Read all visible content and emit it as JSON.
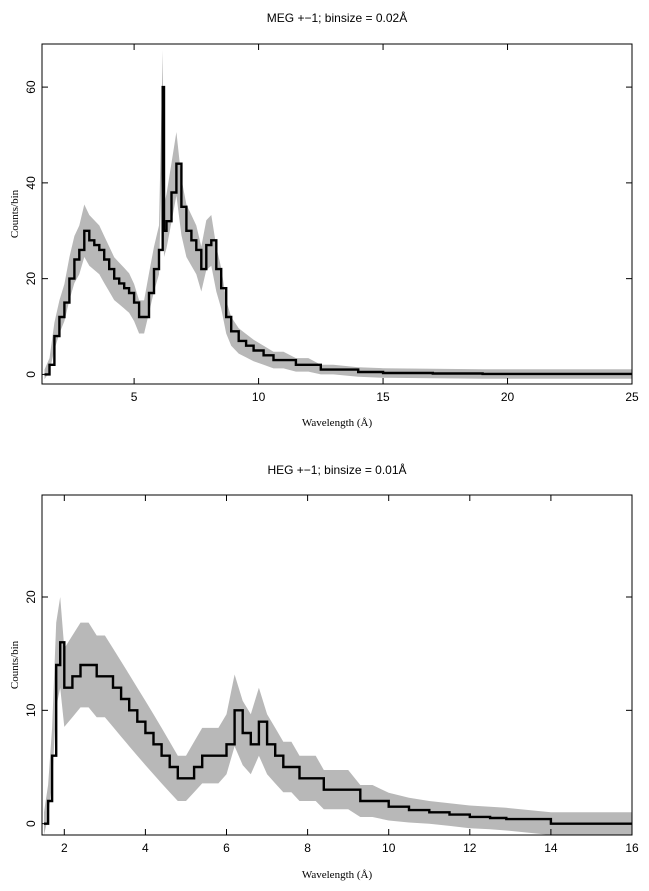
{
  "chart_data": [
    {
      "type": "line",
      "title": "MEG +−1; binsize = 0.02Å",
      "xlabel": "Wavelength (Å)",
      "ylabel": "Counts/bin",
      "xlim": [
        1.3,
        25
      ],
      "ylim": [
        -2,
        69
      ],
      "xticks": [
        5,
        10,
        15,
        20,
        25
      ],
      "yticks": [
        0,
        20,
        40,
        60
      ],
      "grid": false,
      "legend": "none",
      "colors": {
        "data": "#000000",
        "error": "#b8b8b8"
      },
      "series": [
        {
          "x": [
            1.4,
            1.6,
            1.8,
            2.0,
            2.2,
            2.4,
            2.6,
            2.8,
            3.0,
            3.2,
            3.4,
            3.6,
            3.8,
            4.0,
            4.2,
            4.4,
            4.6,
            4.8,
            5.0,
            5.2,
            5.4,
            5.6,
            5.8,
            6.0,
            6.15,
            6.2,
            6.3,
            6.5,
            6.7,
            6.9,
            7.1,
            7.3,
            7.5,
            7.7,
            7.9,
            8.1,
            8.3,
            8.5,
            8.7,
            8.9,
            9.2,
            9.5,
            9.8,
            10.2,
            10.6,
            11.0,
            11.5,
            12.0,
            12.5,
            13.0,
            14.0,
            15.0,
            17.0,
            19.0,
            21.0,
            23.0,
            25.0
          ],
          "values": [
            0,
            2,
            8,
            12,
            15,
            20,
            24,
            26,
            30,
            28,
            27,
            26,
            24,
            22,
            20,
            19,
            18,
            17,
            15,
            12,
            12,
            17,
            22,
            26,
            60,
            30,
            32,
            38,
            44,
            35,
            30,
            28,
            26,
            22,
            27,
            28,
            22,
            18,
            12,
            9,
            7,
            6,
            5,
            4,
            3,
            3,
            2,
            2,
            1,
            1,
            0.5,
            0.3,
            0.2,
            0.1,
            0.1,
            0.1,
            0.1
          ]
        }
      ]
    },
    {
      "type": "line",
      "title": "HEG +−1; binsize = 0.01Å",
      "xlabel": "Wavelength (Å)",
      "ylabel": "Counts/bin",
      "xlim": [
        1.45,
        16
      ],
      "ylim": [
        -1,
        29
      ],
      "xticks": [
        2,
        4,
        6,
        8,
        10,
        12,
        14,
        16
      ],
      "yticks": [
        0,
        10,
        20
      ],
      "grid": false,
      "legend": "none",
      "colors": {
        "data": "#000000",
        "error": "#b8b8b8"
      },
      "series": [
        {
          "x": [
            1.5,
            1.6,
            1.7,
            1.8,
            1.9,
            2.0,
            2.2,
            2.4,
            2.6,
            2.8,
            3.0,
            3.2,
            3.4,
            3.6,
            3.8,
            4.0,
            4.2,
            4.4,
            4.6,
            4.8,
            5.0,
            5.2,
            5.4,
            5.6,
            5.8,
            6.0,
            6.2,
            6.4,
            6.6,
            6.8,
            7.0,
            7.2,
            7.4,
            7.6,
            7.8,
            8.0,
            8.2,
            8.4,
            8.6,
            8.8,
            9.0,
            9.3,
            9.6,
            10.0,
            10.5,
            11.0,
            11.5,
            12.0,
            12.5,
            12.9,
            14.0,
            16.0
          ],
          "values": [
            0,
            2,
            6,
            14,
            16,
            12,
            13,
            14,
            14,
            13,
            13,
            12,
            11,
            10,
            9,
            8,
            7,
            6,
            5,
            4,
            4,
            5,
            6,
            6,
            6,
            7,
            10,
            8,
            7,
            9,
            7,
            6,
            5,
            5,
            4,
            4,
            4,
            3,
            3,
            3,
            3,
            2,
            2,
            1.5,
            1.2,
            1,
            0.8,
            0.6,
            0.5,
            0.4,
            0,
            0
          ]
        }
      ]
    }
  ]
}
